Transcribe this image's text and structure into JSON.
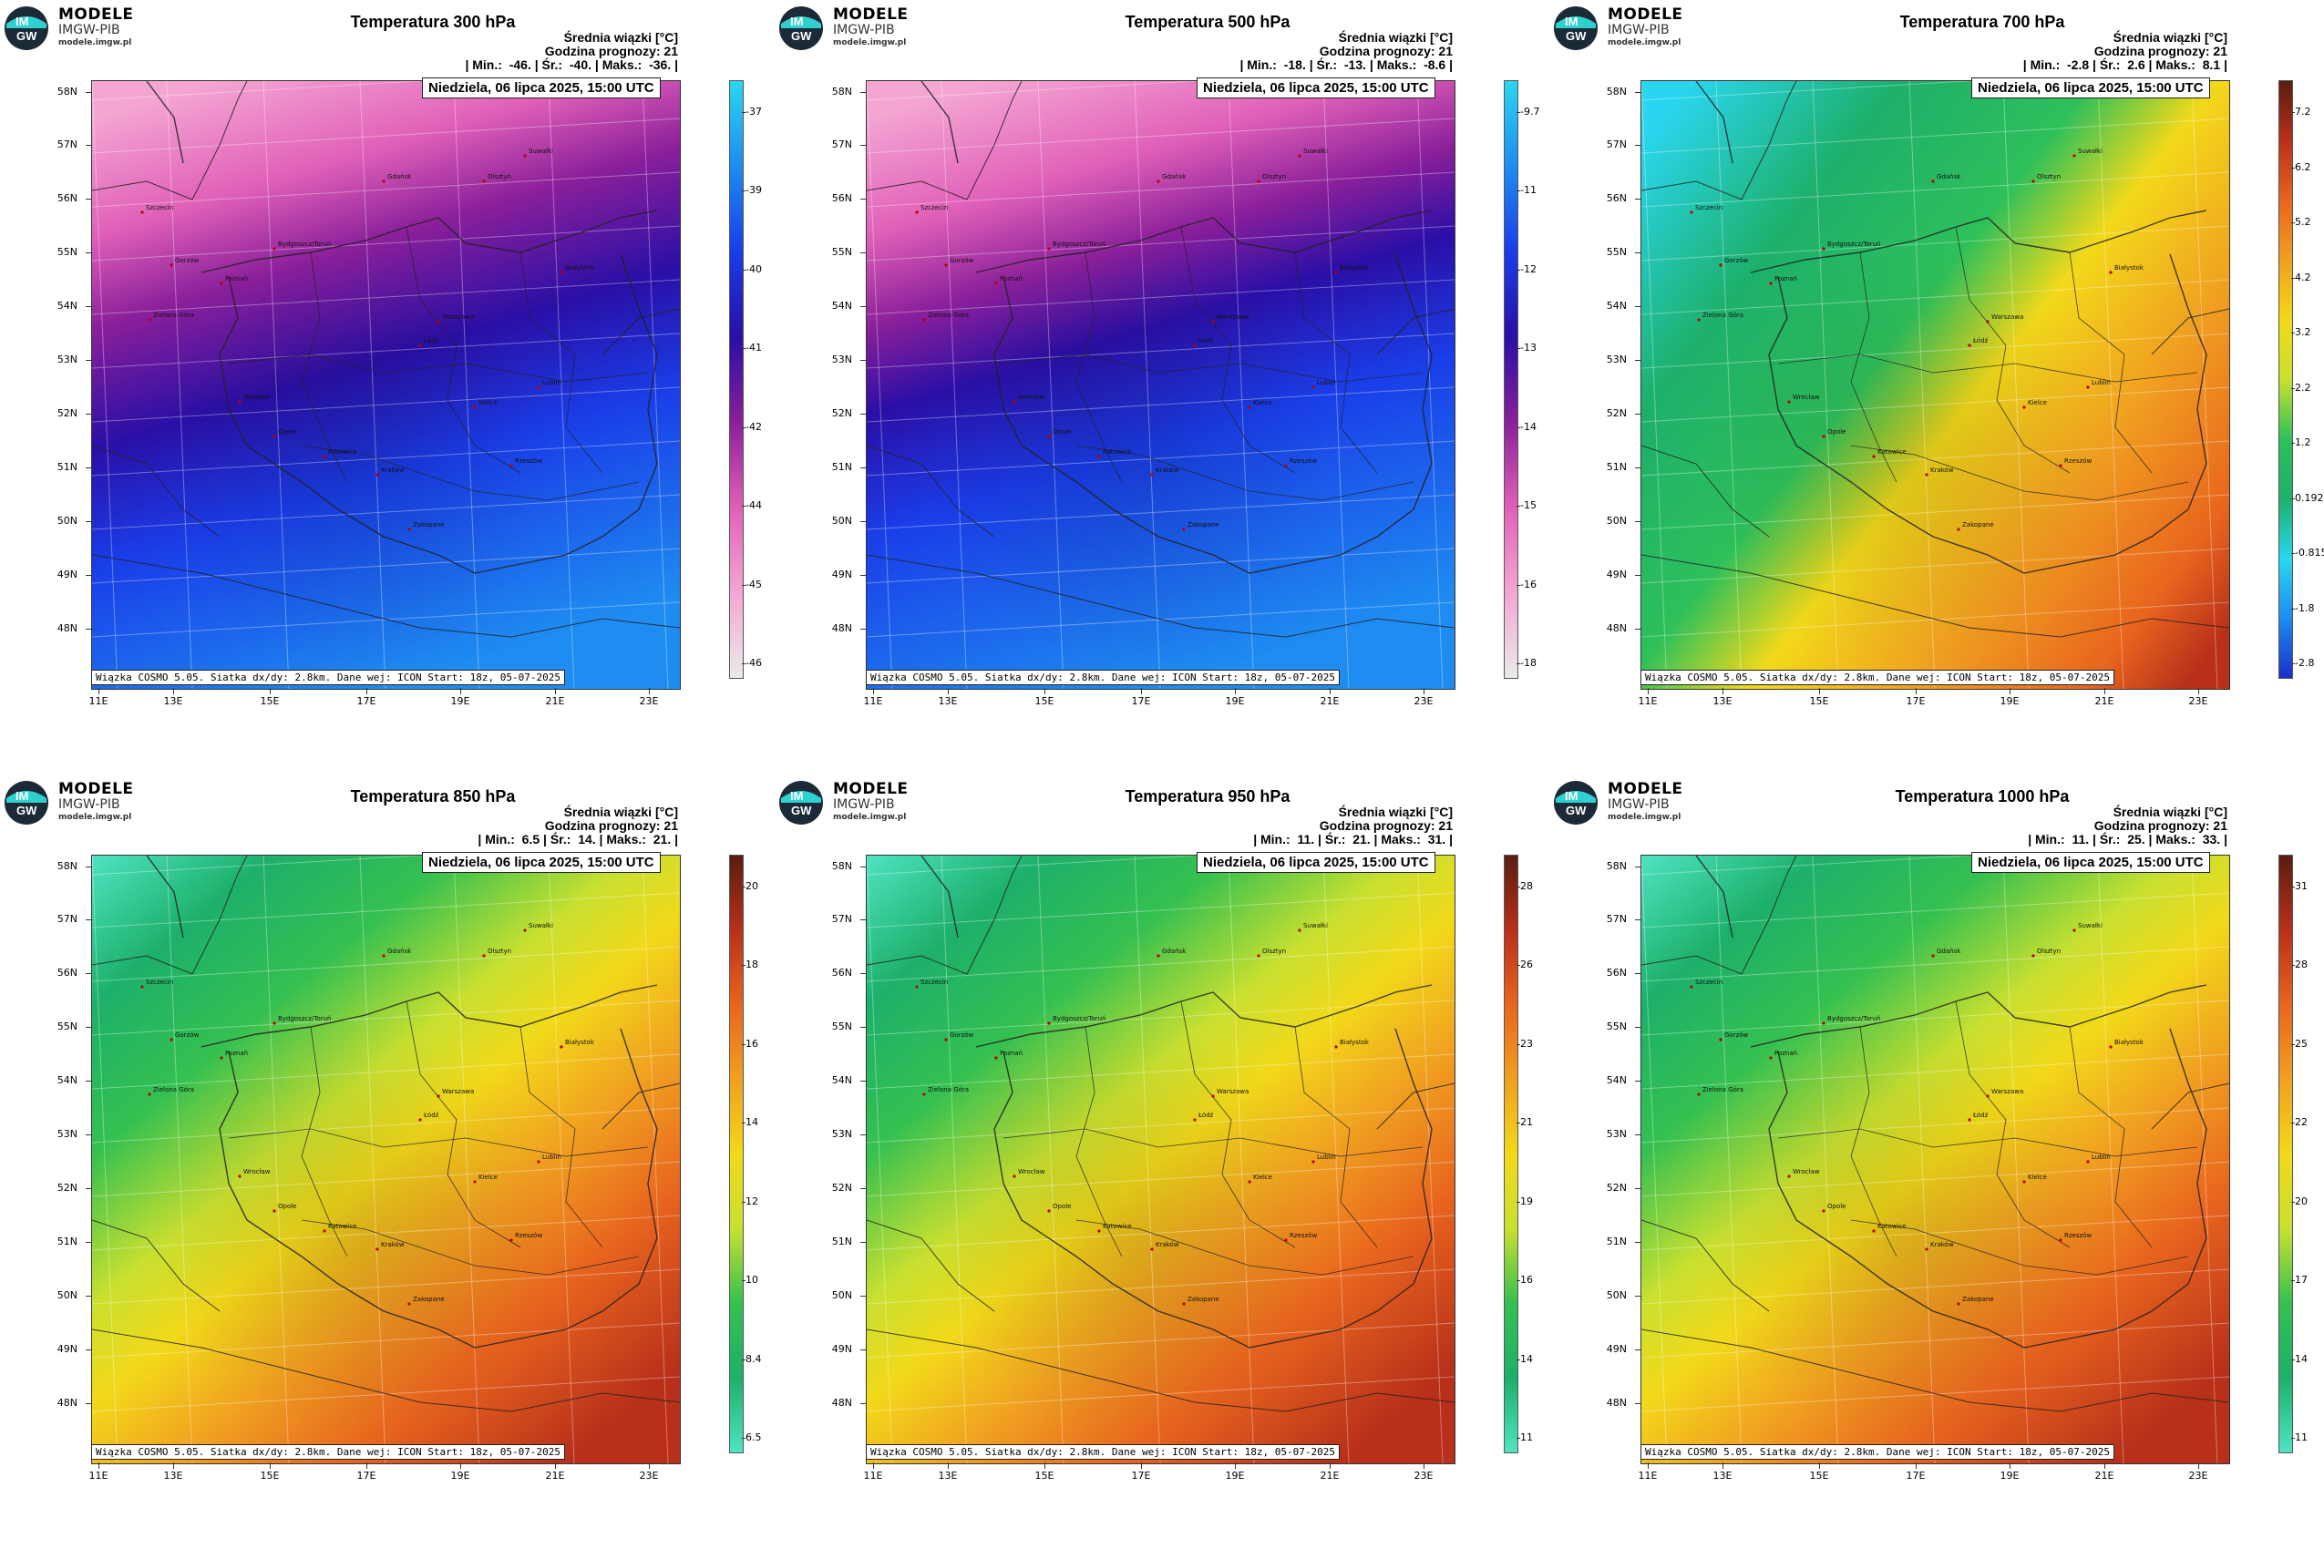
{
  "logo": {
    "brand": "MODELE",
    "sub": "IMGW-PIB",
    "url": "modele.imgw.pl",
    "mark_top": "IM",
    "mark_bottom": "GW"
  },
  "common": {
    "info_line1": "Średnia wiązki [°C]",
    "info_line2": "Godzina prognozy: 21",
    "date": "Niedziela, 06 lipca 2025, 15:00 UTC",
    "model": "Wiązka COSMO 5.05. Siatka dx/dy: 2.8km. Dane wej: ICON Start: 18z, 05-07-2025",
    "lat_labels": [
      "58N",
      "57N",
      "56N",
      "55N",
      "54N",
      "53N",
      "52N",
      "51N",
      "50N",
      "49N",
      "48N"
    ],
    "lon_labels": [
      "11E",
      "13E",
      "15E",
      "17E",
      "19E",
      "21E",
      "23E"
    ],
    "cities": [
      "Gdańsk",
      "Olsztyn",
      "Suwałki",
      "Szczecin",
      "Bydgoszcz/Toruń",
      "Białystok",
      "Gorzów",
      "Poznań",
      "Warszawa",
      "Zielona Góra",
      "Łódź",
      "Lublin",
      "Wrocław",
      "Kielce",
      "Opole",
      "Katowice",
      "Kraków",
      "Rzeszów",
      "Zakopane"
    ]
  },
  "panels": [
    {
      "title": "Temperatura 300 hPa",
      "min": "-46.",
      "avg": "-40.",
      "max": "-36.",
      "colorbar": [
        "-37",
        "-39",
        "-40",
        "-41",
        "-42",
        "-44",
        "-45",
        "-46"
      ],
      "scale": "cold_high",
      "palette": [
        "#eaeaea",
        "#f4a6d3",
        "#e060b8",
        "#8a1f9a",
        "#2a0fa6",
        "#1a3de8",
        "#1e8cf0",
        "#2ad6ef"
      ]
    },
    {
      "title": "Temperatura 500 hPa",
      "min": "-18.",
      "avg": "-13.",
      "max": "-8.6",
      "colorbar": [
        "-9.7",
        "-11",
        "-12",
        "-13",
        "-14",
        "-15",
        "-16",
        "-18"
      ],
      "scale": "cold_mid",
      "palette": [
        "#eaeaea",
        "#f4a6d3",
        "#e060b8",
        "#8a1f9a",
        "#2a0fa6",
        "#1a3de8",
        "#1e8cf0",
        "#2ad6ef"
      ]
    },
    {
      "title": "Temperatura 700 hPa",
      "min": "-2.8",
      "avg": "2.6",
      "max": "8.1",
      "colorbar": [
        "7.2",
        "6.2",
        "5.2",
        "4.2",
        "3.2",
        "2.2",
        "1.2",
        "0.192",
        "-0.815",
        "-1.8",
        "-2.8"
      ],
      "scale": "mid",
      "palette": [
        "#1a2fc8",
        "#1e8cf0",
        "#2ad6ef",
        "#1db06a",
        "#2ec05a",
        "#c8e030",
        "#f2d91a",
        "#f0a020",
        "#e8651e",
        "#b8301a",
        "#5a1d10"
      ]
    },
    {
      "title": "Temperatura 850 hPa",
      "min": "6.5",
      "avg": "14.",
      "max": "21.",
      "colorbar": [
        "20",
        "18",
        "16",
        "14",
        "12",
        "10",
        "8.4",
        "6.5"
      ],
      "scale": "warm",
      "palette": [
        "#4fe3c2",
        "#1db06a",
        "#35c050",
        "#c8e030",
        "#f2d91a",
        "#f0a020",
        "#e8651e",
        "#b8301a",
        "#5a1d10"
      ]
    },
    {
      "title": "Temperatura 950 hPa",
      "min": "11.",
      "avg": "21.",
      "max": "31.",
      "colorbar": [
        "28",
        "26",
        "23",
        "21",
        "19",
        "16",
        "14",
        "11"
      ],
      "scale": "warm",
      "palette": [
        "#4fe3c2",
        "#1db06a",
        "#35c050",
        "#c8e030",
        "#f2d91a",
        "#f0a020",
        "#e8651e",
        "#b8301a",
        "#5a1d10"
      ]
    },
    {
      "title": "Temperatura 1000 hPa",
      "min": "11.",
      "avg": "25.",
      "max": "33.",
      "colorbar": [
        "31",
        "28",
        "25",
        "22",
        "20",
        "17",
        "14",
        "11"
      ],
      "scale": "warm",
      "palette": [
        "#4fe3c2",
        "#1db06a",
        "#35c050",
        "#c8e030",
        "#f2d91a",
        "#f0a020",
        "#e8651e",
        "#b8301a",
        "#5a1d10"
      ]
    }
  ]
}
